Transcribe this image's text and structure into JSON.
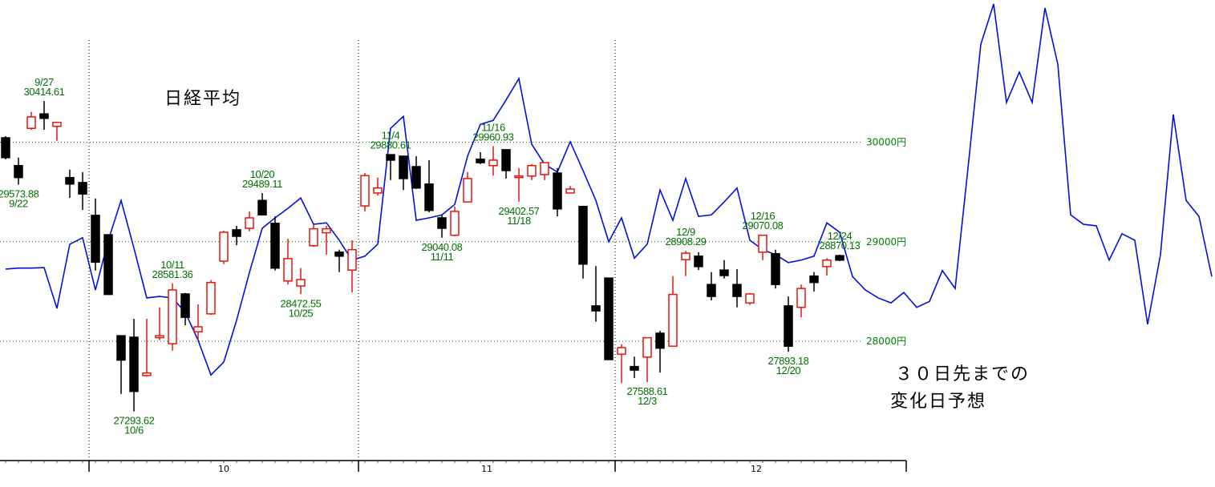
{
  "chart_data": {
    "type": "candlestick",
    "title": "日経平均",
    "note_lines": [
      "３０日先までの",
      "変化日予想"
    ],
    "ylim": [
      26800,
      31430
    ],
    "yticks": [
      {
        "value": 28000,
        "label": "28000円"
      },
      {
        "value": 29000,
        "label": "29000円"
      },
      {
        "value": 30000,
        "label": "30000円"
      }
    ],
    "grid": true,
    "grid_color": "#008000",
    "label_color": "#007000",
    "up_color": "#e8160c",
    "down_color": "#000000",
    "months": [
      "10",
      "11",
      "12"
    ],
    "candles": [
      {
        "o": 30045,
        "h": 30061,
        "l": 29828,
        "c": 29845
      },
      {
        "o": 29765,
        "h": 29845,
        "l": 29573.88,
        "c": 29645,
        "low_label": "9/22"
      },
      {
        "o": 30140,
        "h": 30305,
        "l": 30125,
        "c": 30255
      },
      {
        "o": 30285,
        "h": 30414.61,
        "l": 30125,
        "c": 30240,
        "high_label": "9/27"
      },
      {
        "o": 30160,
        "h": 30205,
        "l": 30015,
        "c": 30200
      },
      {
        "o": 29645,
        "h": 29725,
        "l": 29440,
        "c": 29580
      },
      {
        "o": 29595,
        "h": 29700,
        "l": 29320,
        "c": 29480
      },
      {
        "o": 29265,
        "h": 29435,
        "l": 28710,
        "c": 28795
      },
      {
        "o": 29070,
        "h": 29070,
        "l": 28470,
        "c": 28470
      },
      {
        "o": 28055,
        "h": 28055,
        "l": 27470,
        "c": 27810
      },
      {
        "o": 28040,
        "h": 28225,
        "l": 27293.62,
        "c": 27495,
        "low_label": "10/6"
      },
      {
        "o": 27655,
        "h": 28225,
        "l": 27645,
        "c": 27680
      },
      {
        "o": 28035,
        "h": 28340,
        "l": 28010,
        "c": 28055
      },
      {
        "o": 27975,
        "h": 28581.36,
        "l": 27905,
        "c": 28515,
        "high_label": "10/11"
      },
      {
        "o": 28475,
        "h": 28485,
        "l": 28160,
        "c": 28240
      },
      {
        "o": 28095,
        "h": 28370,
        "l": 28010,
        "c": 28145
      },
      {
        "o": 28275,
        "h": 28615,
        "l": 28265,
        "c": 28590
      },
      {
        "o": 28805,
        "h": 29110,
        "l": 28775,
        "c": 29095
      },
      {
        "o": 29120,
        "h": 29160,
        "l": 28965,
        "c": 29055
      },
      {
        "o": 29135,
        "h": 29305,
        "l": 29105,
        "c": 29240
      },
      {
        "o": 29415,
        "h": 29489.11,
        "l": 29270,
        "c": 29270,
        "high_label": "10/20"
      },
      {
        "o": 29185,
        "h": 29255,
        "l": 28710,
        "c": 28735
      },
      {
        "o": 28605,
        "h": 29030,
        "l": 28570,
        "c": 28830
      },
      {
        "o": 28555,
        "h": 28735,
        "l": 28472.55,
        "c": 28620,
        "low_label": "10/25"
      },
      {
        "o": 28960,
        "h": 29175,
        "l": 28950,
        "c": 29130
      },
      {
        "o": 29090,
        "h": 29160,
        "l": 28870,
        "c": 29130
      },
      {
        "o": 28895,
        "h": 28920,
        "l": 28695,
        "c": 28855
      },
      {
        "o": 28715,
        "h": 29015,
        "l": 28490,
        "c": 28920
      },
      {
        "o": 29360,
        "h": 29690,
        "l": 29305,
        "c": 29665
      },
      {
        "o": 29490,
        "h": 29645,
        "l": 29465,
        "c": 29540
      },
      {
        "o": 29875,
        "h": 29880.61,
        "l": 29620,
        "c": 29820,
        "high_label": "11/4"
      },
      {
        "o": 29860,
        "h": 29860,
        "l": 29520,
        "c": 29635
      },
      {
        "o": 29755,
        "h": 29860,
        "l": 29530,
        "c": 29540
      },
      {
        "o": 29580,
        "h": 29820,
        "l": 29295,
        "c": 29315
      },
      {
        "o": 29240,
        "h": 29270,
        "l": 29040.08,
        "c": 29135,
        "low_label": "11/11"
      },
      {
        "o": 29065,
        "h": 29355,
        "l": 29055,
        "c": 29305
      },
      {
        "o": 29400,
        "h": 29700,
        "l": 29400,
        "c": 29635
      },
      {
        "o": 29830,
        "h": 29900,
        "l": 29780,
        "c": 29795
      },
      {
        "o": 29765,
        "h": 29960.93,
        "l": 29665,
        "c": 29820,
        "high_label": "11/16"
      },
      {
        "o": 29925,
        "h": 29925,
        "l": 29635,
        "c": 29715
      },
      {
        "o": 29645,
        "h": 29740,
        "l": 29402.57,
        "c": 29660,
        "low_label": "11/18"
      },
      {
        "o": 29660,
        "h": 29780,
        "l": 29620,
        "c": 29765
      },
      {
        "o": 29675,
        "h": 29795,
        "l": 29620,
        "c": 29795
      },
      {
        "o": 29690,
        "h": 29740,
        "l": 29255,
        "c": 29330
      },
      {
        "o": 29490,
        "h": 29560,
        "l": 29490,
        "c": 29530
      },
      {
        "o": 29355,
        "h": 29355,
        "l": 28630,
        "c": 28775
      },
      {
        "o": 28355,
        "h": 28755,
        "l": 28195,
        "c": 28305
      },
      {
        "o": 28635,
        "h": 28635,
        "l": 27815,
        "c": 27815
      },
      {
        "o": 27870,
        "h": 27970,
        "l": 27580,
        "c": 27935
      },
      {
        "o": 27745,
        "h": 27845,
        "l": 27630,
        "c": 27710
      },
      {
        "o": 27840,
        "h": 28035,
        "l": 27588.61,
        "c": 28035,
        "low_label": "12/3"
      },
      {
        "o": 28080,
        "h": 28105,
        "l": 27685,
        "c": 27930
      },
      {
        "o": 27950,
        "h": 28655,
        "l": 27945,
        "c": 28470
      },
      {
        "o": 28820,
        "h": 28908.29,
        "l": 28655,
        "c": 28885,
        "high_label": "12/9"
      },
      {
        "o": 28855,
        "h": 28895,
        "l": 28715,
        "c": 28750
      },
      {
        "o": 28570,
        "h": 28695,
        "l": 28410,
        "c": 28450
      },
      {
        "o": 28715,
        "h": 28815,
        "l": 28630,
        "c": 28660
      },
      {
        "o": 28570,
        "h": 28725,
        "l": 28340,
        "c": 28450
      },
      {
        "o": 28385,
        "h": 28485,
        "l": 28365,
        "c": 28475
      },
      {
        "o": 28895,
        "h": 29070.08,
        "l": 28815,
        "c": 29065,
        "high_label": "12/16"
      },
      {
        "o": 28880,
        "h": 28920,
        "l": 28530,
        "c": 28570
      },
      {
        "o": 28355,
        "h": 28450,
        "l": 27893.18,
        "c": 27950,
        "low_label": "12/20"
      },
      {
        "o": 28340,
        "h": 28570,
        "l": 28240,
        "c": 28530
      },
      {
        "o": 28655,
        "h": 28695,
        "l": 28500,
        "c": 28590
      },
      {
        "o": 28750,
        "h": 28835,
        "l": 28660,
        "c": 28815
      },
      {
        "o": 28860,
        "h": 28870.13,
        "l": 28805,
        "c": 28815,
        "high_label": "12/24"
      }
    ],
    "forecast": {
      "color": "#0010e0",
      "values": [
        28725,
        28735,
        28735,
        28740,
        28330,
        28975,
        29040,
        28515,
        29015,
        29415,
        28935,
        28435,
        28450,
        28435,
        28290,
        28010,
        27660,
        27790,
        28210,
        28690,
        29135,
        29240,
        29335,
        29440,
        29175,
        29190,
        29015,
        28815,
        28855,
        28975,
        30140,
        30260,
        29215,
        29240,
        29270,
        29375,
        29860,
        30180,
        30220,
        30425,
        30640,
        29980,
        29780,
        29700,
        30005,
        29715,
        29415,
        29000,
        29240,
        28835,
        28975,
        29520,
        29215,
        29635,
        29255,
        29270,
        29400,
        29540,
        29015,
        28920,
        28870,
        28790,
        28815,
        28855,
        29190,
        29095,
        28650,
        28515,
        28435,
        28385,
        28490,
        28340,
        28400,
        28710,
        28530,
        29740,
        30985,
        31390,
        30400,
        30705,
        30400,
        31350,
        30785,
        29270,
        29175,
        29160,
        28815,
        29080,
        29015,
        28170,
        28870,
        30280,
        29415,
        29255,
        28650
      ]
    }
  }
}
